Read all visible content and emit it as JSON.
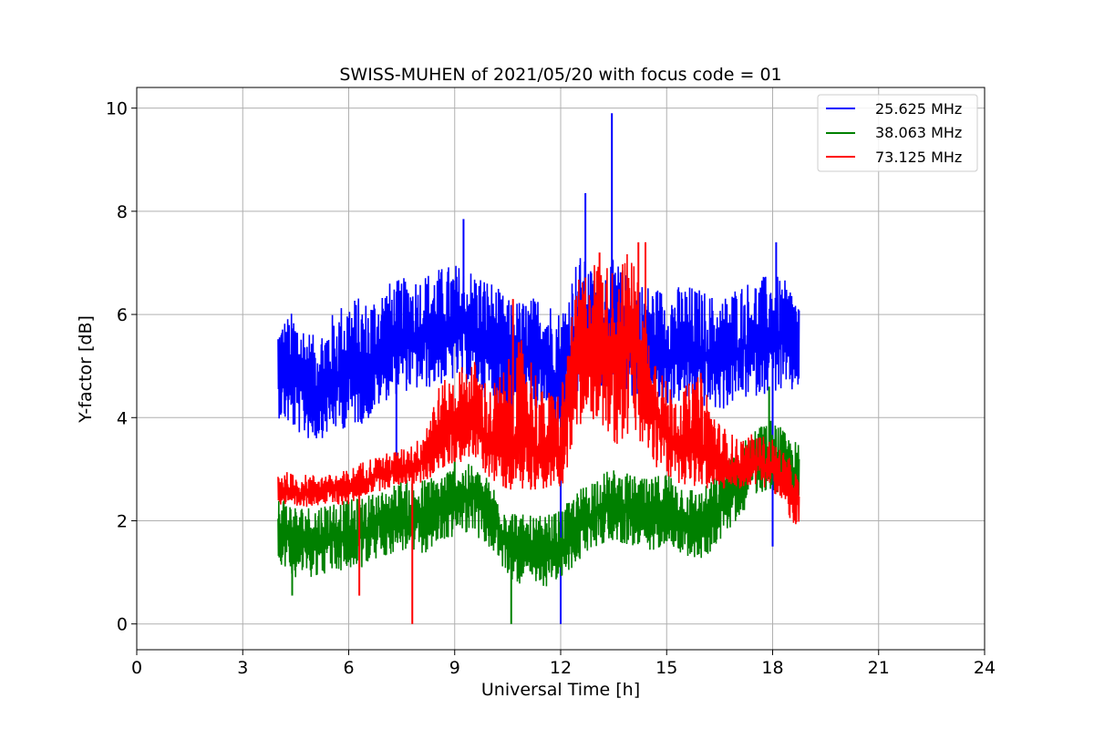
{
  "chart_data": {
    "type": "line",
    "title": "SWISS-MUHEN of 2021/05/20 with focus code = 01",
    "xlabel": "Universal Time [h]",
    "ylabel": "Y-factor [dB]",
    "xlim": [
      0,
      24
    ],
    "ylim": [
      -0.5,
      10.4
    ],
    "xticks": [
      0,
      3,
      6,
      9,
      12,
      15,
      18,
      21,
      24
    ],
    "xtick_labels": [
      "0",
      "3",
      "6",
      "9",
      "12",
      "15",
      "18",
      "21",
      "24"
    ],
    "yticks": [
      0,
      2,
      4,
      6,
      8,
      10
    ],
    "ytick_labels": [
      "0",
      "2",
      "4",
      "6",
      "8",
      "10"
    ],
    "grid": true,
    "legend_position": "top-right",
    "series": [
      {
        "name": "25.625 MHz",
        "color": "#0000ff",
        "x": [
          4.0,
          4.5,
          5.0,
          5.5,
          6.0,
          6.5,
          7.0,
          7.5,
          8.0,
          8.5,
          9.0,
          9.5,
          10.0,
          10.5,
          11.0,
          11.5,
          12.0,
          12.5,
          13.0,
          13.5,
          14.0,
          14.5,
          15.0,
          15.5,
          16.0,
          16.5,
          17.0,
          17.5,
          18.0,
          18.5,
          18.75
        ],
        "y": [
          4.8,
          4.7,
          4.5,
          4.6,
          4.9,
          4.8,
          5.3,
          5.6,
          5.5,
          5.6,
          5.7,
          5.6,
          5.4,
          5.0,
          5.1,
          5.2,
          4.6,
          5.8,
          5.6,
          5.9,
          5.5,
          5.3,
          5.2,
          5.3,
          5.2,
          5.1,
          5.3,
          5.4,
          5.6,
          5.4,
          5.3
        ],
        "hi": [
          5.9,
          6.1,
          5.6,
          6.0,
          6.4,
          6.3,
          6.6,
          6.7,
          6.8,
          6.9,
          7.0,
          6.9,
          6.7,
          6.3,
          6.3,
          6.4,
          6.1,
          7.2,
          6.8,
          7.1,
          6.7,
          6.6,
          6.5,
          6.6,
          6.5,
          6.3,
          6.6,
          6.7,
          6.8,
          6.6,
          6.3
        ],
        "lo": [
          4.0,
          3.7,
          3.5,
          3.7,
          3.8,
          3.9,
          4.3,
          4.5,
          4.5,
          4.6,
          4.7,
          4.6,
          4.3,
          4.0,
          4.0,
          4.1,
          3.5,
          4.4,
          4.4,
          4.8,
          4.4,
          4.3,
          4.2,
          4.3,
          4.2,
          4.1,
          4.3,
          4.4,
          4.5,
          4.4,
          4.6
        ],
        "spikes": [
          [
            9.25,
            7.85
          ],
          [
            12.7,
            8.35
          ],
          [
            13.45,
            9.9
          ],
          [
            18.1,
            7.4
          ],
          [
            12.0,
            0.0
          ],
          [
            18.0,
            1.5
          ],
          [
            7.35,
            3.2
          ]
        ]
      },
      {
        "name": "38.063 MHz",
        "color": "#008000",
        "x": [
          4.0,
          4.5,
          5.0,
          5.5,
          6.0,
          6.5,
          7.0,
          7.5,
          8.0,
          8.5,
          9.0,
          9.5,
          10.0,
          10.5,
          11.0,
          11.5,
          12.0,
          12.5,
          13.0,
          13.5,
          14.0,
          14.5,
          15.0,
          15.5,
          16.0,
          16.5,
          17.0,
          17.5,
          18.0,
          18.5,
          18.75
        ],
        "y": [
          1.8,
          1.6,
          1.6,
          1.7,
          1.7,
          1.8,
          2.0,
          2.1,
          2.0,
          2.2,
          2.4,
          2.5,
          2.1,
          1.6,
          1.4,
          1.3,
          1.5,
          1.9,
          2.2,
          2.3,
          2.2,
          2.0,
          2.3,
          2.0,
          1.9,
          2.3,
          2.7,
          3.2,
          3.3,
          3.0,
          2.9
        ],
        "hi": [
          2.6,
          2.3,
          2.3,
          2.4,
          2.4,
          2.5,
          2.6,
          2.8,
          2.8,
          2.9,
          3.1,
          3.1,
          2.8,
          2.3,
          2.1,
          2.1,
          2.2,
          2.6,
          2.9,
          3.0,
          2.9,
          2.8,
          3.0,
          2.7,
          2.6,
          3.0,
          3.4,
          3.8,
          4.0,
          3.6,
          3.5
        ],
        "lo": [
          1.2,
          0.9,
          0.9,
          1.0,
          1.0,
          1.1,
          1.3,
          1.4,
          1.3,
          1.5,
          1.7,
          1.8,
          1.4,
          0.9,
          0.7,
          0.7,
          0.8,
          1.2,
          1.5,
          1.6,
          1.5,
          1.3,
          1.6,
          1.3,
          1.2,
          1.6,
          2.0,
          2.5,
          2.6,
          2.3,
          2.2
        ],
        "spikes": [
          [
            10.6,
            0.0
          ],
          [
            4.4,
            0.55
          ],
          [
            17.9,
            4.6
          ],
          [
            9.0,
            3.3
          ]
        ]
      },
      {
        "name": "73.125 MHz",
        "color": "#ff0000",
        "x": [
          4.0,
          4.5,
          5.0,
          5.5,
          6.0,
          6.5,
          7.0,
          7.5,
          8.0,
          8.5,
          9.0,
          9.5,
          10.0,
          10.5,
          11.0,
          11.5,
          12.0,
          12.5,
          13.0,
          13.5,
          14.0,
          14.5,
          15.0,
          15.5,
          16.0,
          16.5,
          17.0,
          17.5,
          18.0,
          18.5,
          18.75
        ],
        "y": [
          2.6,
          2.5,
          2.6,
          2.6,
          2.6,
          2.8,
          2.9,
          3.0,
          3.1,
          3.5,
          3.8,
          4.0,
          3.5,
          3.3,
          3.6,
          3.2,
          3.3,
          5.3,
          5.6,
          5.2,
          5.6,
          4.6,
          3.6,
          3.4,
          3.3,
          3.1,
          3.0,
          3.1,
          3.0,
          2.6,
          2.4
        ],
        "hi": [
          3.0,
          2.9,
          2.9,
          2.9,
          3.0,
          3.2,
          3.3,
          3.4,
          3.6,
          4.6,
          4.9,
          5.2,
          4.6,
          5.1,
          5.7,
          4.5,
          4.6,
          6.7,
          7.1,
          6.9,
          7.3,
          5.6,
          4.7,
          4.6,
          4.9,
          3.9,
          3.6,
          3.7,
          3.6,
          3.2,
          2.8
        ],
        "lo": [
          2.3,
          2.2,
          2.3,
          2.3,
          2.3,
          2.5,
          2.6,
          2.7,
          2.7,
          2.9,
          3.1,
          3.2,
          2.8,
          2.6,
          2.6,
          2.6,
          2.6,
          3.6,
          4.0,
          3.4,
          3.6,
          3.1,
          2.8,
          2.7,
          2.6,
          2.6,
          2.6,
          2.7,
          2.6,
          2.0,
          1.7
        ],
        "spikes": [
          [
            7.8,
            0.0
          ],
          [
            6.3,
            0.55
          ],
          [
            10.65,
            6.3
          ],
          [
            14.2,
            7.4
          ],
          [
            14.4,
            7.4
          ],
          [
            13.1,
            7.2
          ]
        ]
      }
    ]
  }
}
